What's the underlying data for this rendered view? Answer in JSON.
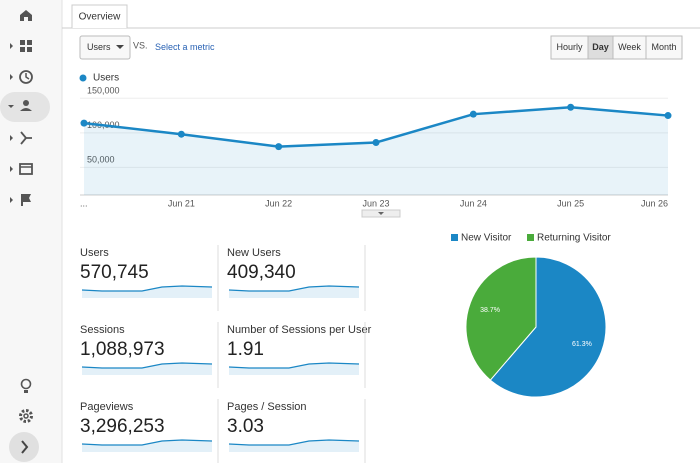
{
  "tab": "Overview",
  "controls": {
    "metric": "Users",
    "vs": "VS.",
    "select_metric": "Select a metric",
    "granularity": [
      "Hourly",
      "Day",
      "Week",
      "Month"
    ],
    "selected": "Day"
  },
  "chart_data": [
    {
      "type": "line",
      "categories": [
        "...",
        "Jun 21",
        "Jun 22",
        "Jun 23",
        "Jun 24",
        "Jun 25",
        "Jun 26"
      ],
      "series": [
        {
          "name": "Users",
          "color": "#1b87c5",
          "values": [
            114000,
            98000,
            80000,
            86000,
            127000,
            137000,
            125000
          ]
        }
      ],
      "ylim": [
        10000,
        162000
      ],
      "yticks": [
        {
          "value": 50000,
          "label": "50,000"
        },
        {
          "value": 100000,
          "label": "100,000"
        },
        {
          "value": 150000,
          "label": "150,000"
        }
      ],
      "grid": true
    },
    {
      "type": "pie",
      "categories": [
        "New Visitor",
        "Returning Visitor"
      ],
      "values": [
        61.3,
        38.7
      ],
      "value_labels": [
        "61.3%",
        "38.7%"
      ],
      "colors": [
        "#1b87c5",
        "#4aab3b"
      ]
    }
  ],
  "metrics": [
    {
      "label": "Users",
      "value": "570,745"
    },
    {
      "label": "New Users",
      "value": "409,340"
    },
    {
      "label": "Sessions",
      "value": "1,088,973"
    },
    {
      "label": "Number of Sessions per User",
      "value": "1.91"
    },
    {
      "label": "Pageviews",
      "value": "3,296,253"
    },
    {
      "label": "Pages / Session",
      "value": "3.03"
    }
  ]
}
